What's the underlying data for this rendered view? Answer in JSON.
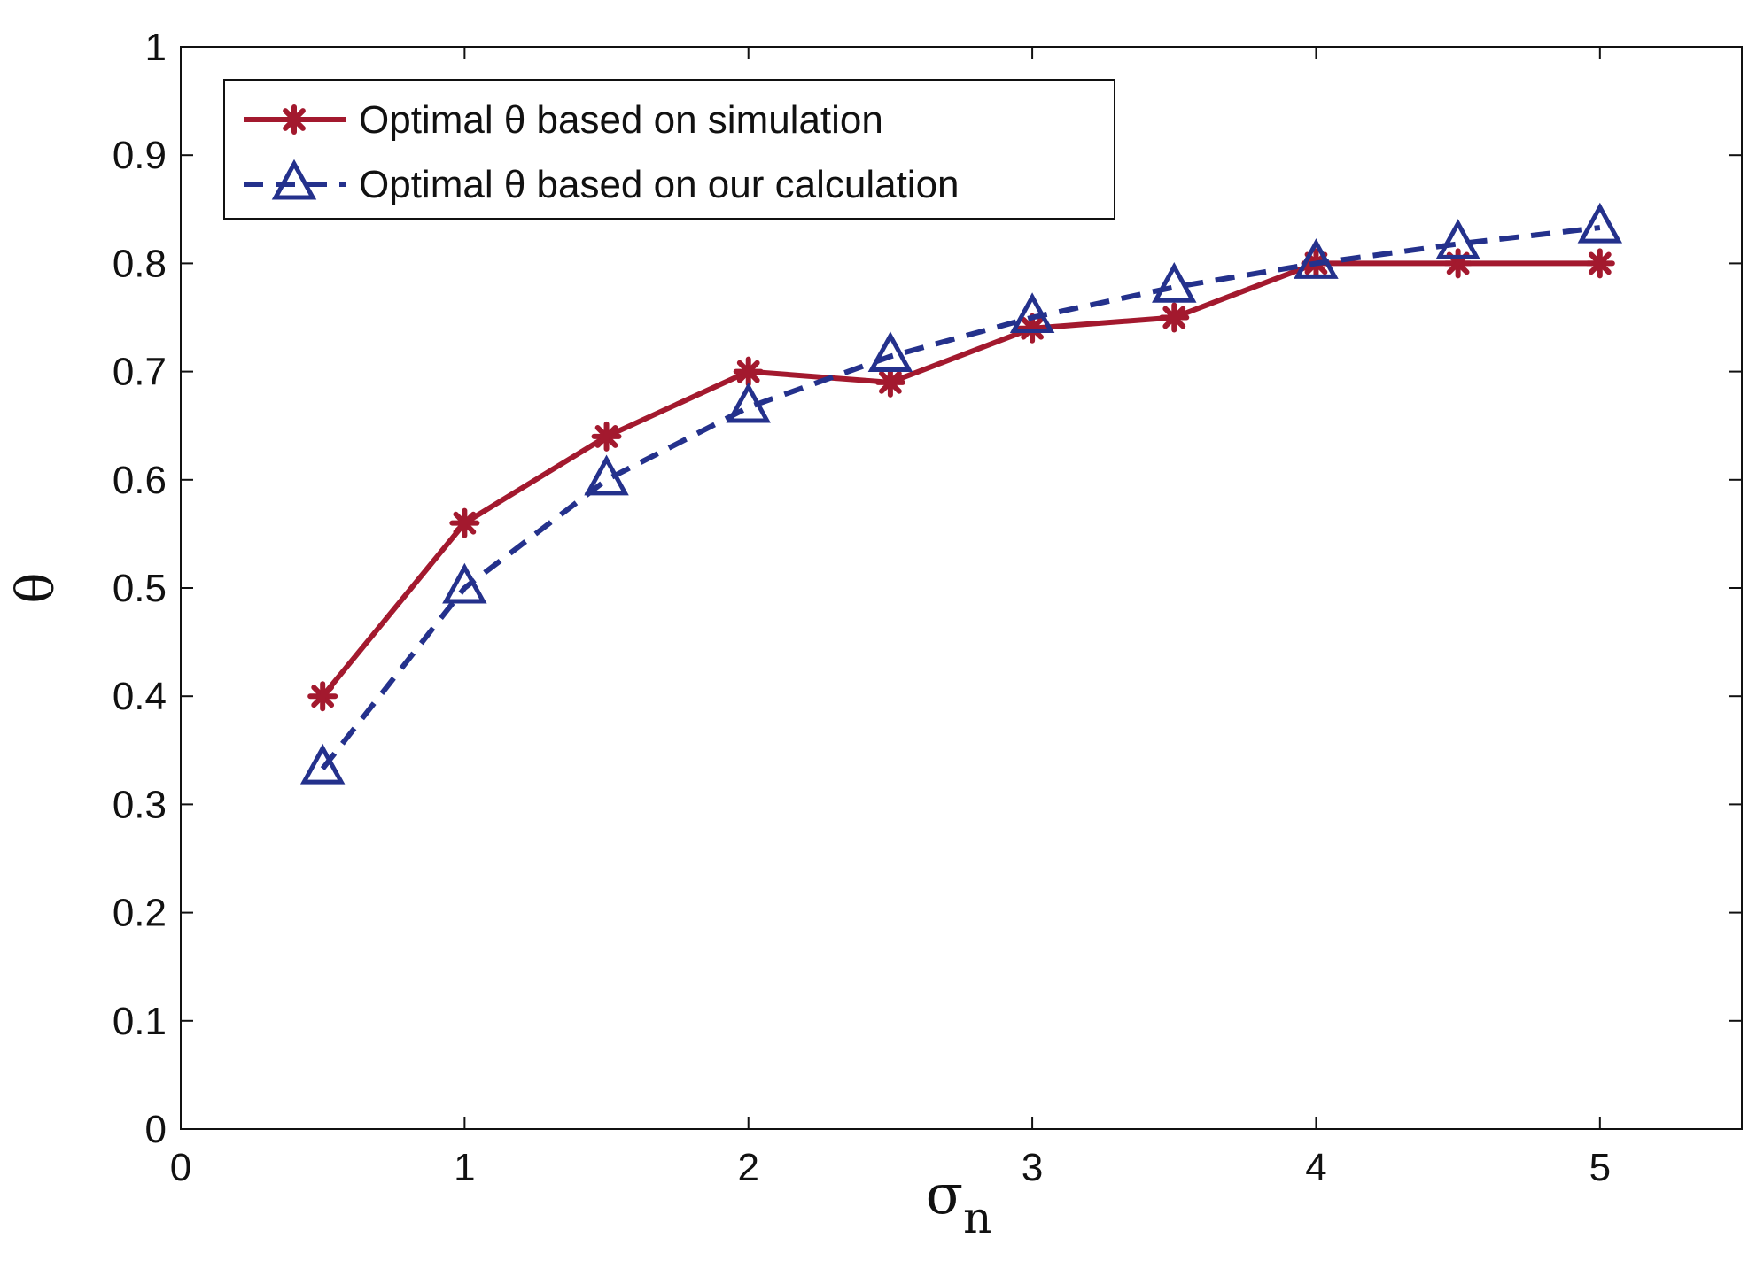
{
  "chart_data": {
    "type": "line",
    "title": "",
    "xlabel": "σ",
    "xlabel_subscript": "n",
    "ylabel": "θ",
    "xlim": [
      0,
      5.5
    ],
    "ylim": [
      0,
      1
    ],
    "xticks": [
      0,
      1,
      2,
      3,
      4,
      5
    ],
    "yticks": [
      0,
      0.1,
      0.2,
      0.3,
      0.4,
      0.5,
      0.6,
      0.7,
      0.8,
      0.9,
      1
    ],
    "xtick_labels": [
      "0",
      "1",
      "2",
      "3",
      "4",
      "5"
    ],
    "ytick_labels": [
      "0",
      "0.1",
      "0.2",
      "0.3",
      "0.4",
      "0.5",
      "0.6",
      "0.7",
      "0.8",
      "0.9",
      "1"
    ],
    "grid": false,
    "legend_position": "top-left",
    "x": [
      0.5,
      1,
      1.5,
      2,
      2.5,
      3,
      3.5,
      4,
      4.5,
      5
    ],
    "series": [
      {
        "name": "Optimal θ based on simulation",
        "color": "#a3192e",
        "line": "solid",
        "marker": "asterisk",
        "values": [
          0.4,
          0.56,
          0.64,
          0.7,
          0.69,
          0.74,
          0.75,
          0.8,
          0.8,
          0.8
        ]
      },
      {
        "name": "Optimal θ based on our calculation",
        "color": "#24318c",
        "line": "dashed",
        "marker": "triangle",
        "values": [
          0.333,
          0.5,
          0.6,
          0.667,
          0.714,
          0.75,
          0.778,
          0.8,
          0.818,
          0.833
        ]
      }
    ]
  }
}
